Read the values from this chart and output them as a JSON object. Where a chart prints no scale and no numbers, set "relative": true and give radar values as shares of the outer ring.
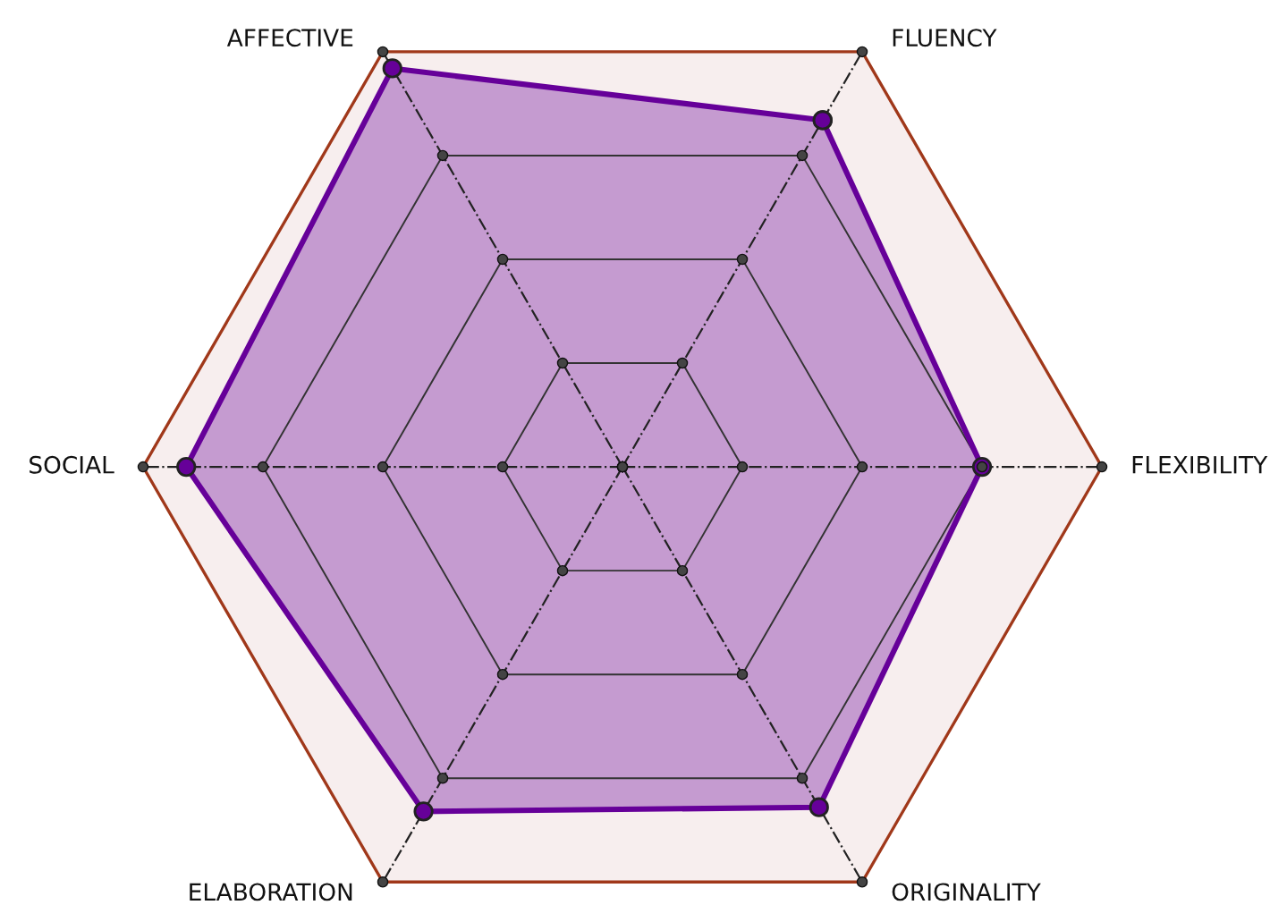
{
  "chart_data": {
    "type": "radar",
    "relative": true,
    "marker": "circle",
    "categories": [
      "FLUENCY",
      "FLEXIBILITY",
      "ORIGINALITY",
      "ELABORATION",
      "SOCIAL",
      "AFFECTIVE"
    ],
    "series": [
      {
        "color": "#660099",
        "values": [
          0.835,
          0.75,
          0.82,
          0.83,
          0.91,
          0.96
        ]
      }
    ]
  }
}
